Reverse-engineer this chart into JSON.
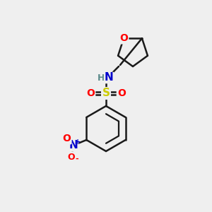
{
  "background_color": "#efefef",
  "bond_color": "#1a1a1a",
  "bond_width": 1.8,
  "atom_colors": {
    "O": "#ff0000",
    "N": "#0000cc",
    "S": "#cccc00",
    "H": "#5a8a8a",
    "C": "#1a1a1a"
  },
  "font_size_atom": 10,
  "font_size_small": 8
}
